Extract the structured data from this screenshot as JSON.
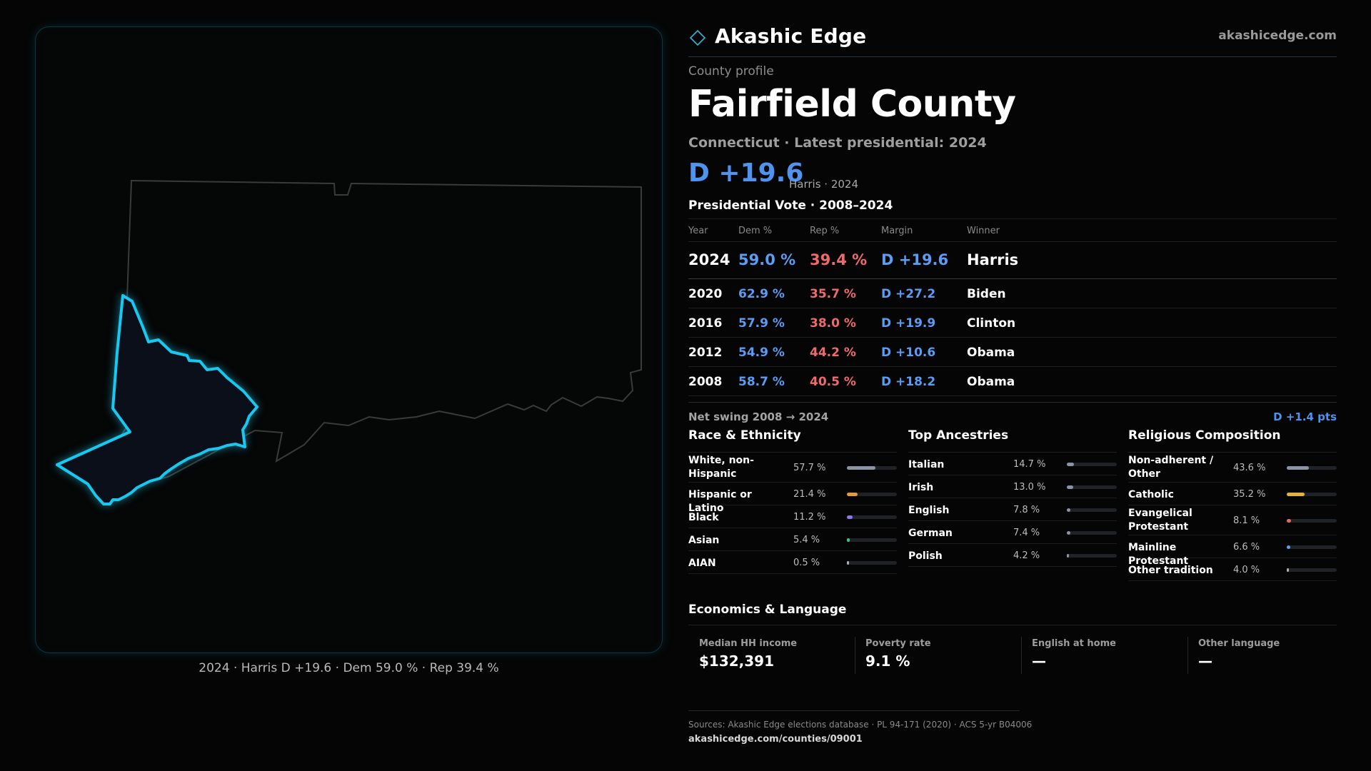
{
  "map": {
    "caption": "2024 · Harris D +19.6 · Dem 59.0 % · Rep 39.4 %",
    "highlight_color": "#19c8ef",
    "state_outline_color": "#3a3a3a"
  },
  "header": {
    "brand": "Akashic Edge",
    "site": "akashicedge.com",
    "logo_icon": "diamond-outline"
  },
  "profile": {
    "eyebrow": "County profile",
    "title": "Fairfield County",
    "subtitle": "Connecticut · Latest presidential: 2024",
    "margin": "D +19.6",
    "margin_note": "Harris · 2024"
  },
  "vote": {
    "title": "Presidential Vote · 2008–2024",
    "headers": {
      "year": "Year",
      "dem": "Dem %",
      "rep": "Rep %",
      "margin": "Margin",
      "winner": "Winner"
    },
    "rows": [
      {
        "year": "2024",
        "dem": "59.0 %",
        "rep": "39.4 %",
        "margin": "D +19.6",
        "winner": "Harris"
      },
      {
        "year": "2020",
        "dem": "62.9 %",
        "rep": "35.7 %",
        "margin": "D +27.2",
        "winner": "Biden"
      },
      {
        "year": "2016",
        "dem": "57.9 %",
        "rep": "38.0 %",
        "margin": "D +19.9",
        "winner": "Clinton"
      },
      {
        "year": "2012",
        "dem": "54.9 %",
        "rep": "44.2 %",
        "margin": "D +10.6",
        "winner": "Obama"
      },
      {
        "year": "2008",
        "dem": "58.7 %",
        "rep": "40.5 %",
        "margin": "D +18.2",
        "winner": "Obama"
      }
    ],
    "swing_label": "Net swing 2008 → 2024",
    "swing_value": "D +1.4 pts"
  },
  "race": {
    "title": "Race & Ethnicity",
    "items": [
      {
        "label": "White, non-Hispanic",
        "pct": "57.7 %",
        "value": 57.7,
        "color": "#8a94a3"
      },
      {
        "label": "Hispanic or Latino",
        "pct": "21.4 %",
        "value": 21.4,
        "color": "#e39a3a"
      },
      {
        "label": "Black",
        "pct": "11.2 %",
        "value": 11.2,
        "color": "#8f78e0"
      },
      {
        "label": "Asian",
        "pct": "5.4 %",
        "value": 5.4,
        "color": "#3fbf8a"
      },
      {
        "label": "AIAN",
        "pct": "0.5 %",
        "value": 0.5,
        "color": "#b0b0b0"
      }
    ]
  },
  "ancestry": {
    "title": "Top Ancestries",
    "items": [
      {
        "label": "Italian",
        "pct": "14.7 %",
        "value": 14.7,
        "color": "#8a94a3"
      },
      {
        "label": "Irish",
        "pct": "13.0 %",
        "value": 13.0,
        "color": "#8a94a3"
      },
      {
        "label": "English",
        "pct": "7.8 %",
        "value": 7.8,
        "color": "#8a94a3"
      },
      {
        "label": "German",
        "pct": "7.4 %",
        "value": 7.4,
        "color": "#8a94a3"
      },
      {
        "label": "Polish",
        "pct": "4.2 %",
        "value": 4.2,
        "color": "#8a94a3"
      }
    ]
  },
  "religion": {
    "title": "Religious Composition",
    "items": [
      {
        "label": "Non-adherent / Other",
        "pct": "43.6 %",
        "value": 43.6,
        "color": "#8a94a3"
      },
      {
        "label": "Catholic",
        "pct": "35.2 %",
        "value": 35.2,
        "color": "#e3b23a"
      },
      {
        "label": "Evangelical Protestant",
        "pct": "8.1 %",
        "value": 8.1,
        "color": "#e06a6a"
      },
      {
        "label": "Mainline Protestant",
        "pct": "6.6 %",
        "value": 6.6,
        "color": "#5c9cf2"
      },
      {
        "label": "Other tradition",
        "pct": "4.0 %",
        "value": 4.0,
        "color": "#b0b0b0"
      }
    ]
  },
  "economics": {
    "title": "Economics & Language",
    "items": [
      {
        "label": "Median HH income",
        "value": "$132,391"
      },
      {
        "label": "Poverty rate",
        "value": "9.1 %"
      },
      {
        "label": "English at home",
        "value": "—"
      },
      {
        "label": "Other language",
        "value": "—"
      }
    ]
  },
  "sources": {
    "line1": "Sources: Akashic Edge elections database · PL 94-171 (2020) · ACS 5-yr B04006",
    "line2": "akashicedge.com/counties/09001"
  }
}
